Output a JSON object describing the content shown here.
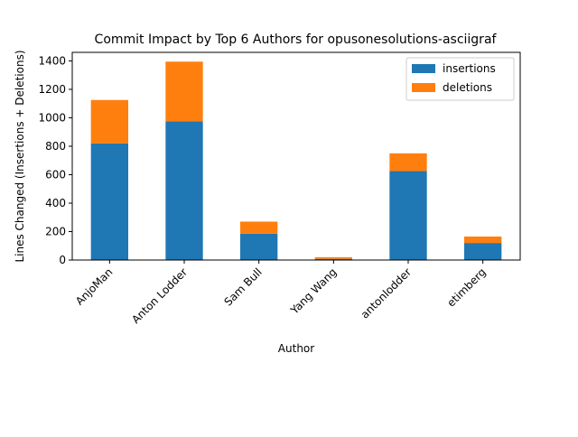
{
  "chart_data": {
    "type": "bar",
    "stacked": true,
    "title": "Commit Impact by Top 6 Authors for opusonesolutions-asciigraf",
    "xlabel": "Author",
    "ylabel": "Lines Changed (Insertions + Deletions)",
    "categories": [
      "AnjoMan",
      "Anton Lodder",
      "Sam Bull",
      "Yang Wang",
      "antonlodder",
      "etimberg"
    ],
    "series": [
      {
        "name": "insertions",
        "values": [
          820,
          975,
          185,
          8,
          625,
          120
        ],
        "color": "#1f77b4"
      },
      {
        "name": "deletions",
        "values": [
          305,
          420,
          85,
          12,
          125,
          45
        ],
        "color": "#ff7f0e"
      }
    ],
    "ylim": [
      0,
      1460
    ],
    "yticks": [
      0,
      200,
      400,
      600,
      800,
      1000,
      1200,
      1400
    ],
    "grid": false,
    "legend_position": "top-right"
  }
}
